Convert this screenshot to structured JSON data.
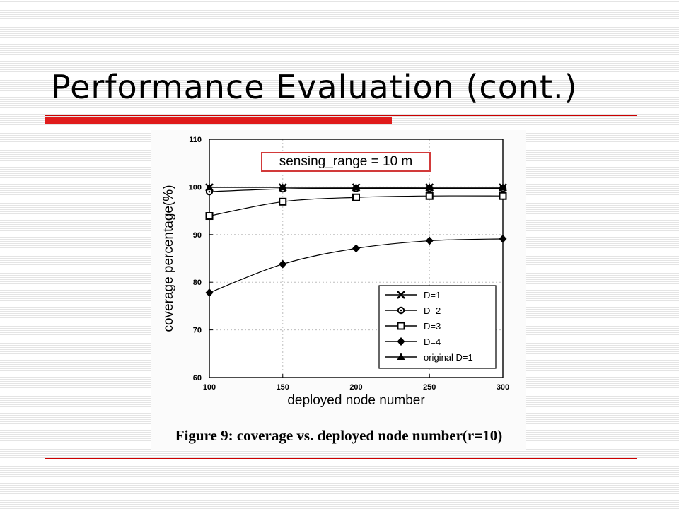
{
  "slide": {
    "title": "Performance Evaluation (cont.)"
  },
  "colors": {
    "accent_red": "#e01c1c",
    "text": "#000000"
  },
  "figure": {
    "caption": "Figure 9: coverage vs. deployed node number(r=10)",
    "annotation": "sensing_range = 10 m"
  },
  "chart_data": {
    "type": "line",
    "xlabel": "deployed node number",
    "ylabel": "coverage percentage(%)",
    "x": [
      100,
      150,
      200,
      250,
      300
    ],
    "xlim": [
      100,
      300
    ],
    "ylim": [
      60,
      110
    ],
    "xticks": [
      100,
      150,
      200,
      250,
      300
    ],
    "yticks": [
      60,
      70,
      80,
      90,
      100,
      110
    ],
    "grid": true,
    "legend_position": "bottom-right",
    "series": [
      {
        "name": "D=1",
        "marker": "x",
        "values": [
          99.9,
          99.9,
          99.9,
          99.9,
          99.9
        ]
      },
      {
        "name": "D=2",
        "marker": "circle-open",
        "values": [
          99.0,
          99.6,
          99.7,
          99.7,
          99.7
        ]
      },
      {
        "name": "D=3",
        "marker": "square-open",
        "values": [
          93.9,
          96.9,
          97.8,
          98.1,
          98.1
        ]
      },
      {
        "name": "D=4",
        "marker": "diamond-filled",
        "values": [
          77.8,
          83.8,
          87.1,
          88.7,
          89.1
        ]
      },
      {
        "name": "original D=1",
        "marker": "triangle-filled",
        "values": [
          99.9,
          99.9,
          99.9,
          99.9,
          99.9
        ]
      }
    ]
  }
}
